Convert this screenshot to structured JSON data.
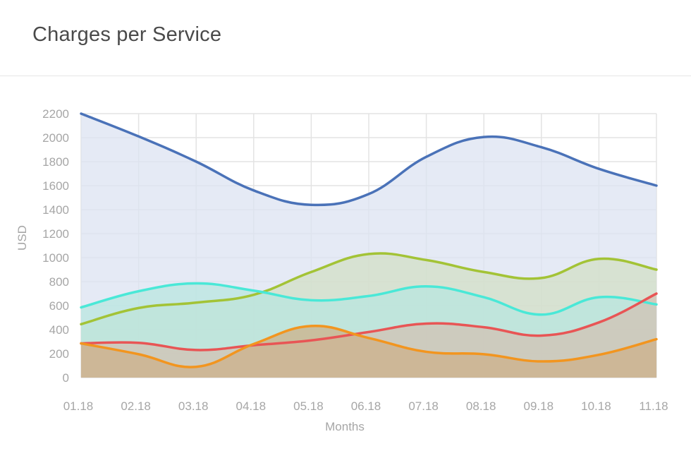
{
  "card": {
    "title": "Charges per Service"
  },
  "chart_data": {
    "type": "area",
    "title": "Charges per Service",
    "xlabel": "Months",
    "ylabel": "USD",
    "ylim": [
      0,
      2200
    ],
    "y_ticks": [
      0,
      200,
      400,
      600,
      800,
      1000,
      1200,
      1400,
      1600,
      1800,
      2000,
      2200
    ],
    "categories": [
      "01.18",
      "02.18",
      "03.18",
      "04.18",
      "05.18",
      "06.18",
      "07.18",
      "08.18",
      "09.18",
      "10.18",
      "11.18"
    ],
    "grid": true,
    "legend": "none",
    "series": [
      {
        "color": "#4a72b8",
        "fill": "#dce3f1",
        "values": [
          2200,
          2010,
          1800,
          1560,
          1440,
          1530,
          1840,
          2005,
          1920,
          1740,
          1600
        ]
      },
      {
        "color": "#a3c336",
        "fill": "#d2dfc6",
        "values": [
          445,
          580,
          625,
          690,
          880,
          1030,
          980,
          880,
          830,
          990,
          900
        ]
      },
      {
        "color": "#4ae8d7",
        "fill": "#b8e6df",
        "values": [
          585,
          720,
          785,
          725,
          645,
          680,
          760,
          670,
          525,
          670,
          610
        ]
      },
      {
        "color": "#e85555",
        "fill": "#d2c2b4",
        "values": [
          285,
          290,
          230,
          270,
          310,
          380,
          450,
          420,
          350,
          460,
          700
        ]
      },
      {
        "color": "#f2951f",
        "fill": "#ccb08a",
        "values": [
          285,
          195,
          90,
          280,
          430,
          330,
          215,
          195,
          135,
          190,
          320
        ]
      }
    ]
  }
}
